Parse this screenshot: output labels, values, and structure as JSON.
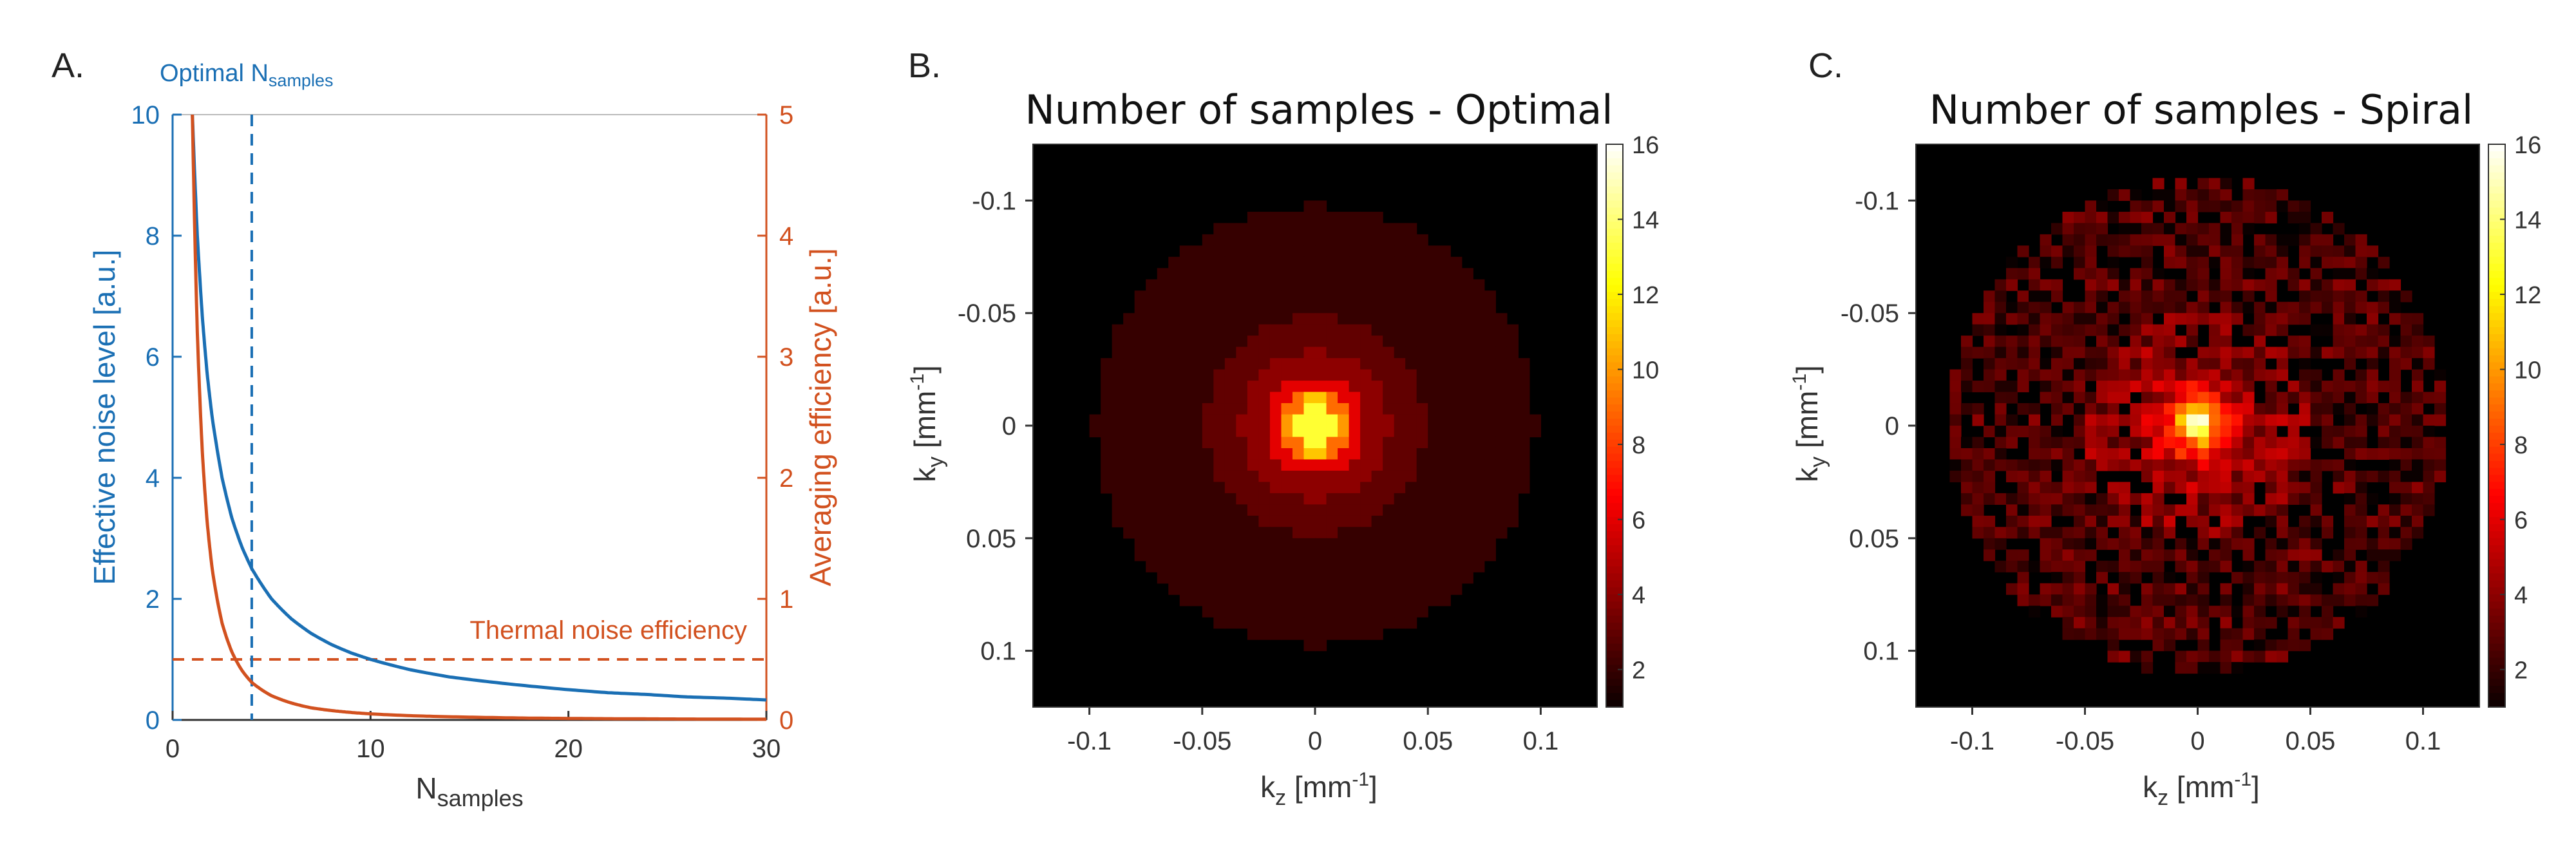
{
  "panel_labels": {
    "a": "A.",
    "b": "B.",
    "c": "C."
  },
  "colors": {
    "left_axis": "#1a6fb4",
    "right_axis": "#d2511f",
    "axis_black": "#333333"
  },
  "chart_data": [
    {
      "id": "A",
      "type": "line",
      "xlabel_main": "N",
      "xlabel_sub": "samples",
      "ylabel_left": "Effective noise level [a.u.]",
      "ylabel_right": "Averaging efficiency [a.u.]",
      "xlim": [
        0,
        30
      ],
      "ylim_left": [
        0,
        10
      ],
      "ylim_right": [
        0,
        5
      ],
      "x_ticks": [
        "0",
        "10",
        "20",
        "30"
      ],
      "y_ticks_left": [
        "0",
        "2",
        "4",
        "6",
        "8",
        "10"
      ],
      "y_ticks_right": [
        "0",
        "1",
        "2",
        "3",
        "4",
        "5"
      ],
      "annotation_optimal_main": "Optimal N",
      "annotation_optimal_sub": "samples",
      "optimal_x": 4,
      "annotation_thermal": "Thermal noise efficiency",
      "thermal_level_right_axis": 0.5,
      "series": [
        {
          "name": "Effective noise level",
          "axis": "left",
          "color": "#1a6fb4",
          "x": [
            1,
            1.25,
            1.5,
            1.75,
            2,
            2.5,
            3,
            3.5,
            4,
            5,
            6,
            7,
            8,
            9,
            10,
            12,
            14,
            16,
            18,
            20,
            22,
            24,
            26,
            28,
            30
          ],
          "values": [
            10,
            8.0,
            6.67,
            5.71,
            5.0,
            4.0,
            3.33,
            2.86,
            2.5,
            2.0,
            1.67,
            1.43,
            1.25,
            1.11,
            1.0,
            0.83,
            0.71,
            0.63,
            0.56,
            0.5,
            0.45,
            0.42,
            0.38,
            0.36,
            0.33
          ]
        },
        {
          "name": "Averaging efficiency",
          "axis": "right",
          "color": "#d2511f",
          "x": [
            1,
            1.25,
            1.5,
            1.75,
            2,
            2.5,
            3,
            3.5,
            4,
            5,
            6,
            7,
            8,
            9,
            10,
            12,
            14,
            16,
            18,
            20,
            22,
            24,
            26,
            28,
            30
          ],
          "values": [
            5.0,
            3.2,
            2.22,
            1.63,
            1.25,
            0.8,
            0.56,
            0.41,
            0.31,
            0.2,
            0.14,
            0.1,
            0.078,
            0.062,
            0.05,
            0.035,
            0.026,
            0.02,
            0.015,
            0.0125,
            0.01,
            0.0087,
            0.0074,
            0.0064,
            0.0056
          ]
        }
      ]
    },
    {
      "id": "B",
      "type": "heatmap",
      "title": "Number of samples - Optimal",
      "xlabel_main": "k",
      "xlabel_sub": "z",
      "xlabel_unit_pre": " [mm",
      "xlabel_unit_sup": "-1",
      "xlabel_unit_post": "]",
      "ylabel_main": "k",
      "ylabel_sub": "y",
      "ylabel_unit_pre": " [mm",
      "ylabel_unit_sup": "-1",
      "ylabel_unit_post": "]",
      "xlim": [
        -0.125,
        0.125
      ],
      "ylim": [
        -0.125,
        0.125
      ],
      "x_ticks": [
        "-0.1",
        "-0.05",
        "0",
        "0.05",
        "0.1"
      ],
      "y_ticks": [
        "-0.1",
        "-0.05",
        "0",
        "0.05",
        "0.1"
      ],
      "colorbar_ticks": [
        "2",
        "4",
        "6",
        "8",
        "10",
        "12",
        "14",
        "16"
      ],
      "color_range": [
        1,
        16
      ],
      "grid_size": 50,
      "pattern": "optimal",
      "rings": [
        {
          "radius_k": 0.095,
          "count": 2
        },
        {
          "radius_k": 0.046,
          "count": 3
        },
        {
          "radius_k": 0.03,
          "count": 4
        },
        {
          "radius_k": 0.02,
          "count": 6
        },
        {
          "radius_k": 0.012,
          "count": 9
        },
        {
          "radius_k": 0.006,
          "count": 13
        },
        {
          "radius_k": 0.0,
          "count": 16
        }
      ]
    },
    {
      "id": "C",
      "type": "heatmap",
      "title": "Number of samples - Spiral",
      "xlabel_main": "k",
      "xlabel_sub": "z",
      "xlabel_unit_pre": " [mm",
      "xlabel_unit_sup": "-1",
      "xlabel_unit_post": "]",
      "ylabel_main": "k",
      "ylabel_sub": "y",
      "ylabel_unit_pre": " [mm",
      "ylabel_unit_sup": "-1",
      "ylabel_unit_post": "]",
      "xlim": [
        -0.125,
        0.125
      ],
      "ylim": [
        -0.125,
        0.125
      ],
      "x_ticks": [
        "-0.1",
        "-0.05",
        "0",
        "0.05",
        "0.1"
      ],
      "y_ticks": [
        "-0.1",
        "-0.05",
        "0",
        "0.05",
        "0.1"
      ],
      "colorbar_ticks": [
        "2",
        "4",
        "6",
        "8",
        "10",
        "12",
        "14",
        "16"
      ],
      "color_range": [
        1,
        16
      ],
      "grid_size": 50,
      "pattern": "spiral",
      "outer_radius_k": 0.11,
      "peak_count": 16
    }
  ]
}
